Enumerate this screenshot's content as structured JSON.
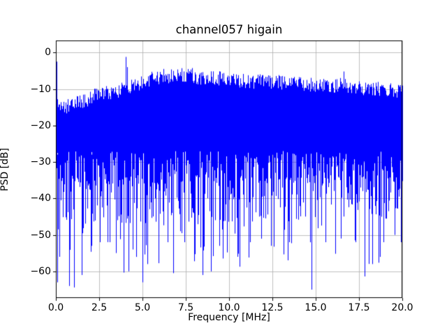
{
  "figure": {
    "title": "channel057 higain"
  },
  "chart_data": {
    "type": "line",
    "title": "channel057 higain",
    "xlabel": "Frequency [MHz]",
    "ylabel": "PSD [dB]",
    "series_name": "PSD",
    "series_color": "#0000ff",
    "grid": true,
    "grid_color": "#b0b0b0",
    "legend": "none",
    "xlim": [
      0,
      20
    ],
    "ylim": [
      -67.3,
      3.3
    ],
    "x_tick_values": [
      0,
      2.5,
      5,
      7.5,
      10,
      12.5,
      15,
      17.5,
      20
    ],
    "x_tick_labels": [
      "0.0",
      "2.5",
      "5.0",
      "7.5",
      "10.0",
      "12.5",
      "15.0",
      "17.5",
      "20.0"
    ],
    "y_tick_values": [
      0,
      -10,
      -20,
      -30,
      -40,
      -50,
      -60
    ],
    "y_tick_labels": [
      "0",
      "−10",
      "−20",
      "−30",
      "−40",
      "−50",
      "−60"
    ],
    "description": "Dense noise-like power spectral density trace; upper envelope rises from about -13 dB near 0 MHz to a broad maximum near -5 dB around 6.5-8 MHz, then slowly decays to about -10 dB at 20 MHz; noise mass extends down to roughly -35 dB with sparse nulls reaching -50 to -65 dB.",
    "envelope": {
      "x": [
        0,
        0.5,
        1,
        1.5,
        2,
        2.5,
        3,
        3.5,
        4,
        4.5,
        5,
        5.5,
        6,
        6.5,
        7,
        7.5,
        8,
        8.5,
        9,
        9.5,
        10,
        10.5,
        11,
        11.5,
        12,
        12.5,
        13,
        13.5,
        14,
        14.5,
        15,
        15.5,
        16,
        16.5,
        17,
        17.5,
        18,
        18.5,
        19,
        19.5,
        20
      ],
      "upper_db": [
        -13,
        -14,
        -13,
        -12.5,
        -11.5,
        -10.5,
        -10,
        -9.5,
        -9,
        -8,
        -7,
        -6.5,
        -6,
        -5.5,
        -5.2,
        -5.2,
        -5.8,
        -6,
        -5.8,
        -6.2,
        -6.5,
        -6.8,
        -6.8,
        -7,
        -6.8,
        -7,
        -7.2,
        -7.5,
        -7.5,
        -7.8,
        -8,
        -8,
        -8.2,
        -7.8,
        -8.5,
        -8.8,
        -9,
        -9,
        -9.2,
        -9.5,
        -9.8
      ]
    },
    "peaks": [
      {
        "x": 0.04,
        "db": -2.5
      },
      {
        "x": 4.05,
        "db": -1.2
      },
      {
        "x": 4.12,
        "db": -4.0
      },
      {
        "x": 6.2,
        "db": -4.5
      },
      {
        "x": 16.6,
        "db": -5.2
      }
    ],
    "deep_nulls": [
      {
        "x": 0.08,
        "db": -63
      },
      {
        "x": 0.2,
        "db": -56
      },
      {
        "x": 0.75,
        "db": -64
      },
      {
        "x": 1.05,
        "db": -52
      },
      {
        "x": 1.5,
        "db": -61
      },
      {
        "x": 2.05,
        "db": -53
      },
      {
        "x": 2.55,
        "db": -52
      },
      {
        "x": 3.1,
        "db": -52
      },
      {
        "x": 4.45,
        "db": -54
      },
      {
        "x": 5.0,
        "db": -63
      },
      {
        "x": 5.3,
        "db": -58
      },
      {
        "x": 6.45,
        "db": -52
      },
      {
        "x": 7.4,
        "db": -52
      },
      {
        "x": 8.45,
        "db": -61
      },
      {
        "x": 8.95,
        "db": -60
      },
      {
        "x": 9.45,
        "db": -53
      },
      {
        "x": 10.5,
        "db": -56
      },
      {
        "x": 11.2,
        "db": -52
      },
      {
        "x": 12.4,
        "db": -53
      },
      {
        "x": 13.45,
        "db": -52
      },
      {
        "x": 14.75,
        "db": -65
      },
      {
        "x": 15.55,
        "db": -52
      },
      {
        "x": 16.45,
        "db": -51
      },
      {
        "x": 17.3,
        "db": -52
      },
      {
        "x": 18.25,
        "db": -58
      },
      {
        "x": 18.9,
        "db": -52
      },
      {
        "x": 19.55,
        "db": -50
      },
      {
        "x": 19.9,
        "db": -52
      }
    ],
    "noise_floor_typical_db": -35,
    "seed": 1057
  }
}
